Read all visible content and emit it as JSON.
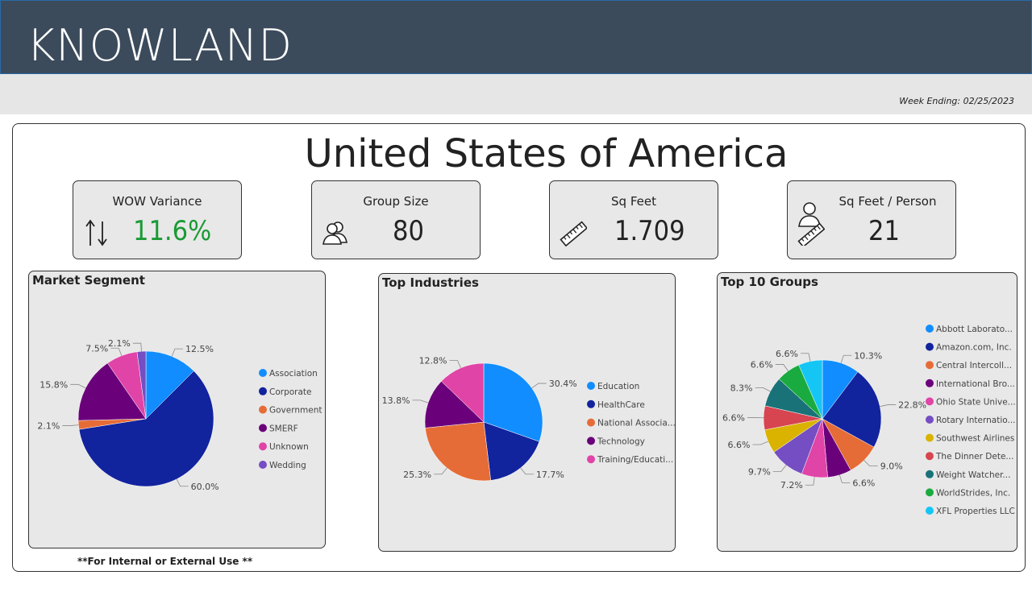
{
  "header": {
    "brand": "KNOWLAND",
    "week_ending": "Week Ending: 02/25/2023"
  },
  "main": {
    "title": "United States of America"
  },
  "kpis": [
    {
      "label": "WOW Variance",
      "value": "11.6%",
      "icon": "up-down-arrows-icon",
      "color": "#1a9a35"
    },
    {
      "label": "Group Size",
      "value": "80",
      "icon": "people-icon",
      "color": "#222222"
    },
    {
      "label": "Sq Feet",
      "value": "1.709",
      "icon": "ruler-icon",
      "color": "#222222"
    },
    {
      "label": "Sq Feet / Person",
      "value": "21",
      "icon": "person-ruler-icon",
      "color": "#222222"
    }
  ],
  "footnote": "**For Internal or External Use **",
  "chart_data": [
    {
      "type": "pie",
      "title": "Market Segment",
      "categories": [
        "Association",
        "Corporate",
        "Government",
        "SMERF",
        "Unknown",
        "Wedding"
      ],
      "legend_labels": [
        "Association",
        "Corporate",
        "Government",
        "SMERF",
        "Unknown",
        "Wedding"
      ],
      "values": [
        12.5,
        60.0,
        2.1,
        15.8,
        7.5,
        2.1
      ],
      "data_labels": [
        "12.5%",
        "60.0%",
        "2.1%",
        "15.8%",
        "7.5%",
        "2.1%"
      ],
      "colors": [
        "#118dff",
        "#12239e",
        "#e66c37",
        "#6b007b",
        "#e044a7",
        "#744ec2"
      ],
      "legend": "right"
    },
    {
      "type": "pie",
      "title": "Top Industries",
      "categories": [
        "Education",
        "HealthCare",
        "National Association",
        "Technology",
        "Training/Education"
      ],
      "legend_labels": [
        "Education",
        "HealthCare",
        "National Associa...",
        "Technology",
        "Training/Educati..."
      ],
      "values": [
        30.4,
        17.7,
        25.3,
        13.8,
        12.8
      ],
      "data_labels": [
        "30.4%",
        "17.7%",
        "25.3%",
        "13.8%",
        "12.8%"
      ],
      "colors": [
        "#118dff",
        "#12239e",
        "#e66c37",
        "#6b007b",
        "#e044a7"
      ],
      "legend": "right"
    },
    {
      "type": "pie",
      "title": "Top 10 Groups",
      "categories": [
        "Abbott Laboratories",
        "Amazon.com, Inc.",
        "Central Intercollegiate",
        "International Brotherhood",
        "Ohio State University",
        "Rotary International",
        "Southwest Airlines",
        "The Dinner Detective",
        "Weight Watchers",
        "WorldStrides, Inc.",
        "XFL Properties LLC"
      ],
      "legend_labels": [
        "Abbott Laborato...",
        "Amazon.com, Inc.",
        "Central Intercoll...",
        "International Bro...",
        "Ohio State Unive...",
        "Rotary Internatio...",
        "Southwest Airlines",
        "The Dinner Dete...",
        "Weight Watcher...",
        "WorldStrides, Inc.",
        "XFL Properties LLC"
      ],
      "values": [
        10.3,
        22.8,
        9.0,
        6.6,
        7.2,
        9.7,
        6.6,
        6.6,
        8.3,
        6.6,
        6.6
      ],
      "data_labels": [
        "10.3%",
        "22.8%",
        "9.0%",
        "6.6%",
        "7.2%",
        "9.7%",
        "6.6%",
        "6.6%",
        "8.3%",
        "6.6%",
        "6.6%"
      ],
      "colors": [
        "#118dff",
        "#12239e",
        "#e66c37",
        "#6b007b",
        "#e044a7",
        "#744ec2",
        "#d9b300",
        "#d64550",
        "#197278",
        "#1aab40",
        "#15c6f4"
      ],
      "legend": "right"
    }
  ]
}
